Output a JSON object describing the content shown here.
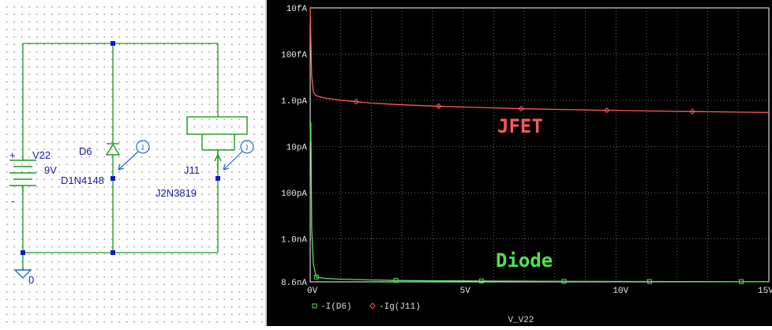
{
  "schematic": {
    "source": {
      "ref": "V22",
      "value": "9V",
      "plus": "+",
      "minus": "-"
    },
    "diode": {
      "ref": "D6",
      "model": "D1N4148"
    },
    "jfet": {
      "ref": "J11",
      "model": "J2N3819"
    },
    "ground": "0",
    "probe_symbol": "I"
  },
  "chart_data": {
    "type": "line",
    "xlabel": "V_V22",
    "x_ticks": [
      "0V",
      "5V",
      "10V",
      "15V"
    ],
    "xlim": [
      0,
      15
    ],
    "y_scale": "log",
    "y_ticks": [
      "10fA",
      "100fA",
      "1.0pA",
      "10pA",
      "100pA",
      "1.0nA",
      "8.6nA"
    ],
    "series": [
      {
        "name": "-I(D6)",
        "label": "Diode",
        "color": "#55e055",
        "marker": "square",
        "x": [
          0,
          0.02,
          0.05,
          0.1,
          0.2,
          0.5,
          1,
          2,
          3,
          4,
          5,
          6,
          7,
          8,
          9,
          10,
          11,
          12,
          13,
          14,
          15
        ],
        "y": [
          "8e-12",
          "3e-12",
          "6e-10",
          "3.5e-9",
          "6.7e-9",
          "7.2e-9",
          "7.45e-9",
          "7.75e-9",
          "7.95e-9",
          "8.05e-9",
          "8.12e-9",
          "8.18e-9",
          "8.22e-9",
          "8.27e-9",
          "8.3e-9",
          "8.33e-9",
          "8.36e-9",
          "8.39e-9",
          "8.41e-9",
          "8.43e-9",
          "8.45e-9"
        ],
        "markers_x": [
          0.2,
          2.8,
          5.6,
          8.3,
          11.1,
          14.1
        ]
      },
      {
        "name": "-Ig(J11)",
        "label": "JFET",
        "color": "#ff5a5a",
        "marker": "diamond",
        "x": [
          0,
          0.02,
          0.05,
          0.1,
          0.2,
          0.5,
          1,
          2,
          3,
          4,
          5,
          6,
          7,
          8,
          9,
          10,
          11,
          12,
          13,
          14,
          15
        ],
        "y": [
          "1e-14",
          "5e-14",
          "3e-13",
          "6.5e-13",
          "8e-13",
          "9e-13",
          "1e-12",
          "1.15e-12",
          "1.25e-12",
          "1.33e-12",
          "1.4e-12",
          "1.46e-12",
          "1.52e-12",
          "1.57e-12",
          "1.62e-12",
          "1.66e-12",
          "1.7e-12",
          "1.74e-12",
          "1.77e-12",
          "1.8e-12",
          "1.83e-12"
        ],
        "markers_x": [
          1.5,
          4.2,
          6.9,
          9.7,
          12.5
        ]
      }
    ]
  }
}
